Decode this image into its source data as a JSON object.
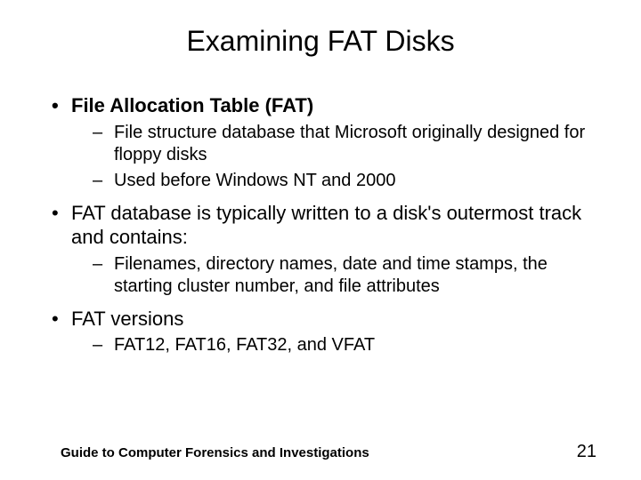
{
  "title": "Examining FAT Disks",
  "bullets": {
    "b1": "File Allocation Table (FAT)",
    "b1_1": "File structure database that Microsoft originally designed for floppy disks",
    "b1_2": "Used before Windows NT and 2000",
    "b2": "FAT database is typically written to a disk's outermost track and contains:",
    "b2_1": "Filenames, directory names, date and time stamps, the starting cluster number, and file attributes",
    "b3": "FAT versions",
    "b3_1": "FAT12, FAT16, FAT32, and VFAT"
  },
  "footer": "Guide to Computer Forensics and Investigations",
  "page": "21",
  "colors": {
    "background": "#ffffff",
    "text": "#000000"
  },
  "fonts": {
    "title_size": 32,
    "l1_size": 22,
    "l2_size": 20,
    "footer_size": 15,
    "page_size": 20
  }
}
